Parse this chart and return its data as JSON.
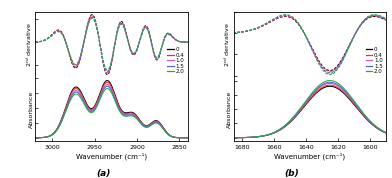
{
  "panel_a": {
    "xlim": [
      3020,
      2840
    ],
    "xticks": [
      3000,
      2950,
      2900,
      2850
    ],
    "xlabel": "Wavenumber (cm⁻¹)"
  },
  "panel_b": {
    "xlim": [
      1685,
      1590
    ],
    "xticks": [
      1680,
      1660,
      1640,
      1620,
      1600
    ],
    "xlabel": "Wavenumber (cm⁻¹)"
  },
  "legend_labels": [
    "0",
    "0.4",
    "1.0",
    "1.5",
    "2.0"
  ],
  "colors": [
    "black",
    "#e83030",
    "#cc55cc",
    "#5566cc",
    "#22aa44"
  ],
  "label_a": "(a)",
  "label_b": "(b)"
}
